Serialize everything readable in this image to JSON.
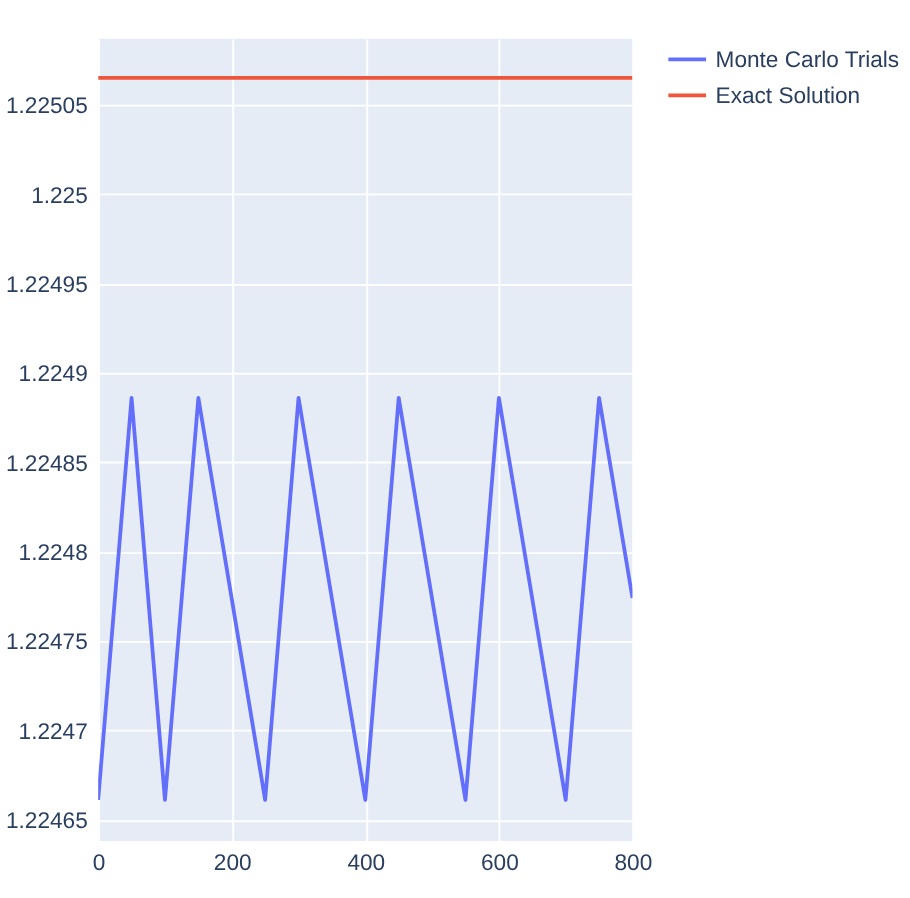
{
  "chart_data": {
    "type": "line",
    "x": [
      0,
      50,
      100,
      150,
      250,
      300,
      400,
      450,
      550,
      600,
      700,
      750,
      800
    ],
    "series": [
      {
        "name": "Monte Carlo Trials",
        "color": "#636efa",
        "values": [
          1.224661,
          1.224886,
          1.224661,
          1.224886,
          1.224661,
          1.224886,
          1.224661,
          1.224886,
          1.224661,
          1.224886,
          1.224661,
          1.224886,
          1.224774
        ]
      },
      {
        "name": "Exact Solution",
        "color": "#ef553b",
        "x": [
          0,
          800
        ],
        "values": [
          1.225065,
          1.225065
        ]
      }
    ],
    "xlim": [
      0,
      800
    ],
    "xticks": [
      0,
      200,
      400,
      600,
      800
    ],
    "ylim": [
      1.224638,
      1.225087
    ],
    "yticks": [
      1.22465,
      1.2247,
      1.22475,
      1.2248,
      1.22485,
      1.2249,
      1.22495,
      1.225,
      1.22505
    ],
    "grid": true,
    "legend": "top right",
    "marker": "none",
    "line_style": "solid"
  }
}
